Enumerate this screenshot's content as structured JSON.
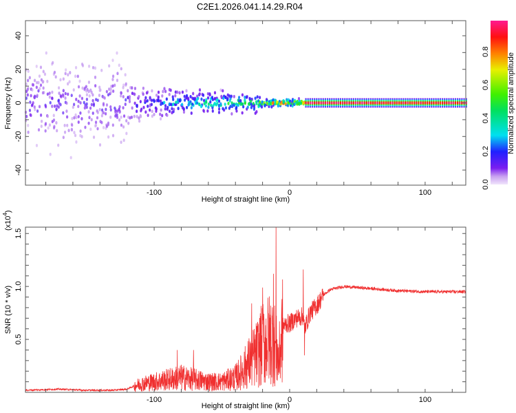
{
  "title": "C2E1.2026.041.14.29.R04",
  "chart_data": [
    {
      "type": "heatmap",
      "title": "C2E1.2026.041.14.29.R04",
      "xlabel": "Height of straight line (km)",
      "ylabel": "Frequency (Hz)",
      "xlim": [
        -195,
        130
      ],
      "ylim": [
        -49,
        49
      ],
      "xticks": [
        -100,
        0,
        100
      ],
      "xtick_labels": [
        "-100",
        "0",
        "100"
      ],
      "yticks": [
        -40,
        -20,
        0,
        20,
        40
      ],
      "ytick_labels": [
        "-40",
        "-20",
        "0",
        "20",
        "40"
      ],
      "colorbar": {
        "label": "Normalized spectral amplitude",
        "range": [
          0,
          1
        ],
        "ticks": [
          "0.0",
          "0.2",
          "0.4",
          "0.6",
          "0.8"
        ]
      },
      "profile": {
        "height_km": [
          -195,
          -150,
          -125,
          -120,
          -100,
          -90,
          -70,
          -50,
          -30,
          -25,
          -20,
          -10,
          0,
          8,
          10,
          50,
          100,
          130
        ],
        "spread_hz": [
          45,
          45,
          45,
          20,
          14,
          12,
          11,
          9,
          8,
          10,
          4,
          3,
          3,
          3,
          1.5,
          1.5,
          1.5,
          1.5
        ],
        "peak_amplitude": [
          0.15,
          0.15,
          0.15,
          0.18,
          0.22,
          0.35,
          0.4,
          0.5,
          0.55,
          0.5,
          0.7,
          0.9,
          0.95,
          0.95,
          1.0,
          1.0,
          0.95,
          1.0
        ]
      }
    },
    {
      "type": "line",
      "xlabel": "Height of straight line (km)",
      "ylabel": "SNR (10 * v/v)",
      "yscale_label": "(x10",
      "yscale_exp": "4",
      "yscale_close": ")",
      "xlim": [
        -195,
        130
      ],
      "ylim": [
        0,
        1.56
      ],
      "xticks": [
        -100,
        0,
        100
      ],
      "xtick_labels": [
        "-100",
        "0",
        "100"
      ],
      "yticks": [
        0.5,
        1.0,
        1.5
      ],
      "ytick_labels": [
        "0.5",
        "1.0",
        "1.5"
      ],
      "color": "#f03030",
      "series": [
        {
          "name": "SNR",
          "x": [
            -195,
            -170,
            -150,
            -130,
            -120,
            -115,
            -110,
            -100,
            -90,
            -80,
            -70,
            -60,
            -50,
            -40,
            -35,
            -30,
            -25,
            -20,
            -15,
            -12,
            -10,
            -8,
            -5,
            -2,
            0,
            5,
            10,
            11,
            15,
            20,
            25,
            30,
            40,
            50,
            60,
            80,
            100,
            120,
            130
          ],
          "y": [
            0.02,
            0.03,
            0.02,
            0.02,
            0.03,
            0.06,
            0.08,
            0.1,
            0.12,
            0.14,
            0.12,
            0.1,
            0.1,
            0.14,
            0.2,
            0.28,
            0.35,
            0.45,
            0.5,
            0.5,
            0.4,
            0.3,
            0.62,
            0.65,
            0.65,
            0.7,
            0.72,
            0.6,
            0.75,
            0.82,
            0.92,
            0.97,
            1.0,
            0.99,
            0.98,
            0.96,
            0.95,
            0.95,
            0.95
          ],
          "spikes": [
            [
              -12,
              1.12
            ],
            [
              -10,
              1.56
            ],
            [
              10,
              1.16
            ],
            [
              11,
              0.35
            ],
            [
              -20,
              0.99
            ],
            [
              -28,
              0.84
            ],
            [
              -83,
              0.4
            ],
            [
              -71,
              0.4
            ]
          ]
        }
      ]
    }
  ]
}
